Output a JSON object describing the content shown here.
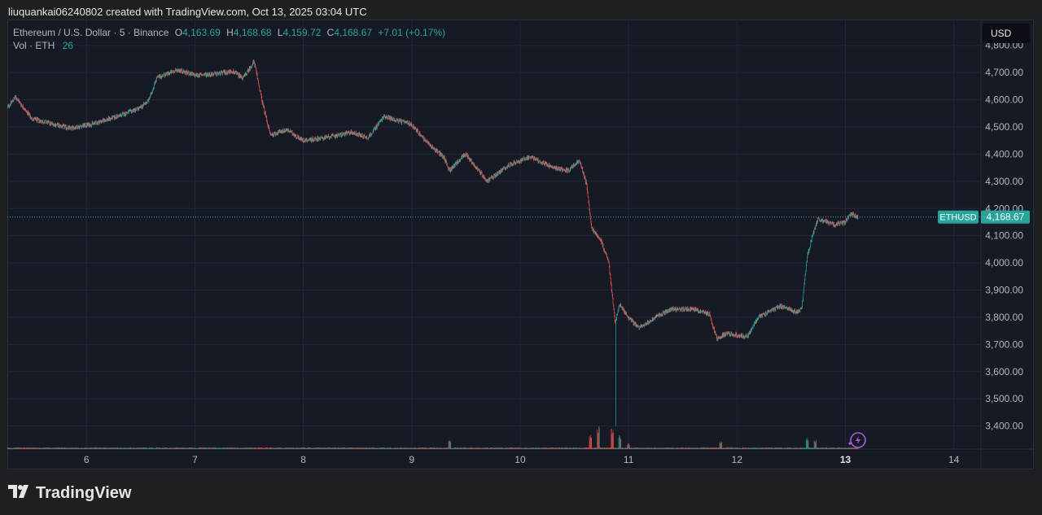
{
  "header": {
    "attribution": "liuquankai06240802 created with TradingView.com, Oct 13, 2025 03:04 UTC"
  },
  "legend": {
    "symbol": "Ethereum / U.S. Dollar · 5 · Binance",
    "o_label": "O",
    "o_value": "4,163.69",
    "h_label": "H",
    "h_value": "4,168.68",
    "l_label": "L",
    "l_value": "4,159.72",
    "c_label": "C",
    "c_value": "4,168.67",
    "change": "+7.01 (+0.17%)",
    "vol_label": "Vol · ETH",
    "vol_value": "26"
  },
  "currency_button": "USD",
  "price_tag": {
    "symbol": "ETHUSD",
    "value": "4,168.67"
  },
  "brand": {
    "name": "TradingView"
  },
  "colors": {
    "up": "#26a69a",
    "down": "#ef5350",
    "background": "#161a25",
    "grid": "#232734",
    "axis_text": "#b2b5be",
    "price_line": "#26a69a"
  },
  "chart_data": {
    "type": "candlestick",
    "interval": "5m",
    "y_axis": {
      "ticks": [
        "4,800.00",
        "4,700.00",
        "4,600.00",
        "4,500.00",
        "4,400.00",
        "4,300.00",
        "4,200.00",
        "4,100.00",
        "4,000.00",
        "3,900.00",
        "3,800.00",
        "3,700.00",
        "3,600.00",
        "3,500.00",
        "3,400.00"
      ],
      "tick_values": [
        4800,
        4700,
        4600,
        4500,
        4400,
        4300,
        4200,
        4100,
        4000,
        3900,
        3800,
        3700,
        3600,
        3500,
        3400
      ],
      "range": [
        3315,
        4895
      ]
    },
    "x_axis": {
      "ticks": [
        "6",
        "7",
        "8",
        "9",
        "10",
        "11",
        "12",
        "13",
        "14"
      ],
      "tick_days": [
        6,
        7,
        8,
        9,
        10,
        11,
        12,
        13,
        14
      ],
      "range": [
        5.27,
        14.25
      ],
      "bold_tick": "13"
    },
    "last_price": 4168.67,
    "key_points": [
      {
        "day": 5.27,
        "price": 4570
      },
      {
        "day": 5.35,
        "price": 4610
      },
      {
        "day": 5.5,
        "price": 4530
      },
      {
        "day": 5.7,
        "price": 4510
      },
      {
        "day": 5.85,
        "price": 4495
      },
      {
        "day": 6.05,
        "price": 4510
      },
      {
        "day": 6.3,
        "price": 4540
      },
      {
        "day": 6.5,
        "price": 4570
      },
      {
        "day": 6.58,
        "price": 4600
      },
      {
        "day": 6.65,
        "price": 4680
      },
      {
        "day": 6.85,
        "price": 4710
      },
      {
        "day": 7.0,
        "price": 4690
      },
      {
        "day": 7.2,
        "price": 4695
      },
      {
        "day": 7.35,
        "price": 4705
      },
      {
        "day": 7.45,
        "price": 4680
      },
      {
        "day": 7.55,
        "price": 4740
      },
      {
        "day": 7.62,
        "price": 4600
      },
      {
        "day": 7.7,
        "price": 4470
      },
      {
        "day": 7.85,
        "price": 4490
      },
      {
        "day": 8.0,
        "price": 4450
      },
      {
        "day": 8.2,
        "price": 4460
      },
      {
        "day": 8.45,
        "price": 4480
      },
      {
        "day": 8.6,
        "price": 4460
      },
      {
        "day": 8.75,
        "price": 4540
      },
      {
        "day": 8.9,
        "price": 4520
      },
      {
        "day": 9.0,
        "price": 4510
      },
      {
        "day": 9.15,
        "price": 4440
      },
      {
        "day": 9.3,
        "price": 4390
      },
      {
        "day": 9.35,
        "price": 4340
      },
      {
        "day": 9.5,
        "price": 4400
      },
      {
        "day": 9.7,
        "price": 4300
      },
      {
        "day": 9.9,
        "price": 4360
      },
      {
        "day": 10.1,
        "price": 4390
      },
      {
        "day": 10.3,
        "price": 4350
      },
      {
        "day": 10.45,
        "price": 4340
      },
      {
        "day": 10.55,
        "price": 4380
      },
      {
        "day": 10.62,
        "price": 4280
      },
      {
        "day": 10.66,
        "price": 4130
      },
      {
        "day": 10.75,
        "price": 4080
      },
      {
        "day": 10.82,
        "price": 4000
      },
      {
        "day": 10.88,
        "price": 3780
      },
      {
        "day": 10.92,
        "price": 3850
      },
      {
        "day": 11.0,
        "price": 3800
      },
      {
        "day": 11.1,
        "price": 3760
      },
      {
        "day": 11.25,
        "price": 3800
      },
      {
        "day": 11.4,
        "price": 3830
      },
      {
        "day": 11.6,
        "price": 3830
      },
      {
        "day": 11.75,
        "price": 3810
      },
      {
        "day": 11.82,
        "price": 3720
      },
      {
        "day": 11.9,
        "price": 3740
      },
      {
        "day": 12.1,
        "price": 3730
      },
      {
        "day": 12.2,
        "price": 3800
      },
      {
        "day": 12.4,
        "price": 3840
      },
      {
        "day": 12.55,
        "price": 3820
      },
      {
        "day": 12.6,
        "price": 3830
      },
      {
        "day": 12.65,
        "price": 4020
      },
      {
        "day": 12.7,
        "price": 4100
      },
      {
        "day": 12.75,
        "price": 4160
      },
      {
        "day": 12.9,
        "price": 4140
      },
      {
        "day": 13.0,
        "price": 4150
      },
      {
        "day": 13.05,
        "price": 4180
      },
      {
        "day": 13.12,
        "price": 4168.67
      }
    ],
    "flash_crash": {
      "day": 10.88,
      "low": 3400
    },
    "volume_spikes": [
      {
        "day": 9.35,
        "v": 0.35
      },
      {
        "day": 10.65,
        "v": 0.55
      },
      {
        "day": 10.72,
        "v": 1.0
      },
      {
        "day": 10.85,
        "v": 0.9
      },
      {
        "day": 10.92,
        "v": 0.6
      },
      {
        "day": 11.0,
        "v": 0.2
      },
      {
        "day": 11.85,
        "v": 0.3
      },
      {
        "day": 12.65,
        "v": 0.5
      },
      {
        "day": 12.72,
        "v": 0.35
      }
    ]
  }
}
